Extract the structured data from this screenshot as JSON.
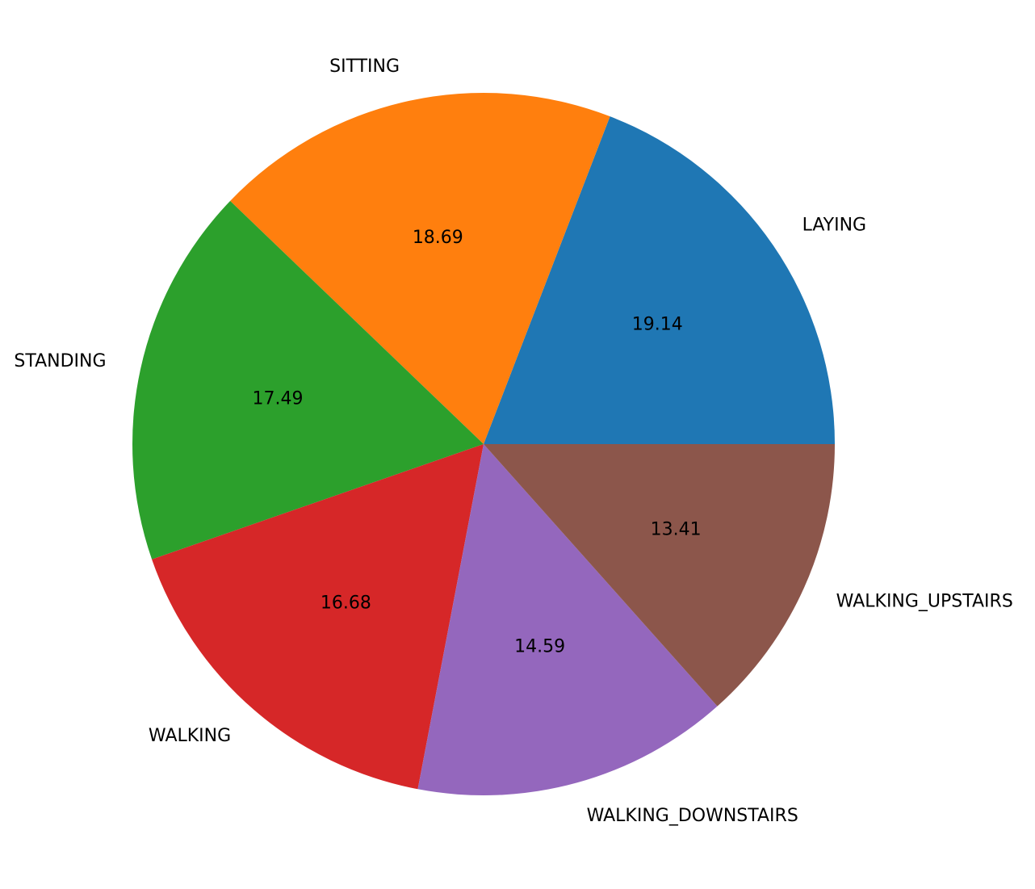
{
  "chart_data": {
    "type": "pie",
    "categories": [
      "LAYING",
      "SITTING",
      "STANDING",
      "WALKING",
      "WALKING_DOWNSTAIRS",
      "WALKING_UPSTAIRS"
    ],
    "values": [
      19.14,
      18.69,
      17.49,
      16.68,
      14.59,
      13.41
    ],
    "value_labels": [
      "19.14",
      "18.69",
      "17.49",
      "16.68",
      "14.59",
      "13.41"
    ],
    "colors": [
      "#1f77b4",
      "#ff7f0e",
      "#2ca02c",
      "#d62728",
      "#9467bd",
      "#8c564b"
    ],
    "start_angle": 0,
    "direction": "counterclockwise",
    "legend": "none"
  }
}
